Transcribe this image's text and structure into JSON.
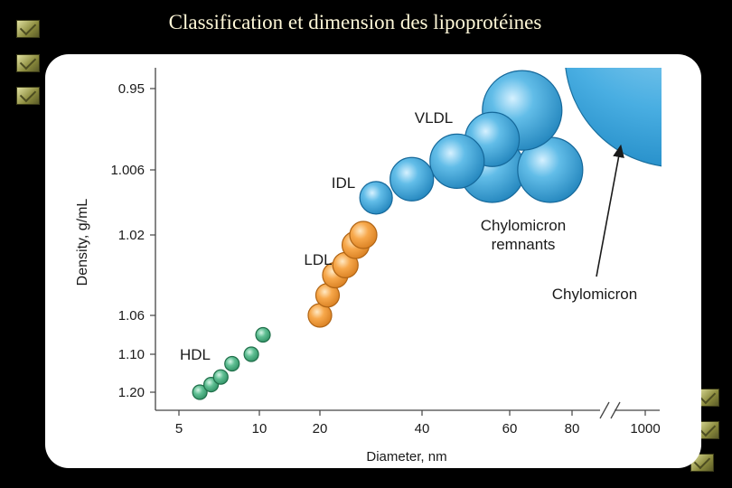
{
  "slide": {
    "title": "Classification et dimension des lipoprotéines",
    "bullets": [
      "checkbox-bullet",
      "checkbox-bullet",
      "checkbox-bullet",
      "checkbox-bullet",
      "checkbox-bullet",
      "checkbox-bullet"
    ]
  },
  "chart_data": {
    "type": "scatter",
    "title": "",
    "xlabel": "Diameter, nm",
    "ylabel": "Density, g/mL",
    "x_ticks": [
      "5",
      "10",
      "20",
      "40",
      "60",
      "80",
      "1000"
    ],
    "y_ticks": [
      "0.95",
      "1.006",
      "1.02",
      "1.06",
      "1.10",
      "1.20"
    ],
    "x_axis_break": "between 80 and 1000",
    "colors": {
      "HDL": "#3fa67a",
      "LDL": "#f0962e",
      "VLDL": "#3a9fd6",
      "Chylomicron": "#3a9fd6"
    },
    "series": [
      {
        "name": "HDL",
        "label": "HDL",
        "color": "#3fa67a",
        "points": [
          {
            "x": 6.3,
            "y": 1.2
          },
          {
            "x": 7.0,
            "y": 1.18
          },
          {
            "x": 7.6,
            "y": 1.16
          },
          {
            "x": 8.3,
            "y": 1.125
          },
          {
            "x": 9.5,
            "y": 1.1
          },
          {
            "x": 10.6,
            "y": 1.08
          }
        ]
      },
      {
        "name": "LDL",
        "label": "LDL",
        "color": "#f0962e",
        "points": [
          {
            "x": 20,
            "y": 1.06
          },
          {
            "x": 21.5,
            "y": 1.05
          },
          {
            "x": 23,
            "y": 1.04
          },
          {
            "x": 25,
            "y": 1.035
          },
          {
            "x": 27,
            "y": 1.025
          },
          {
            "x": 28.5,
            "y": 1.02
          }
        ]
      },
      {
        "name": "IDL",
        "label": "IDL",
        "color": "#3a9fd6",
        "points": [
          {
            "x": 31,
            "y": 1.012
          },
          {
            "x": 38,
            "y": 1.008
          }
        ]
      },
      {
        "name": "VLDL",
        "label": "VLDL",
        "color": "#3a9fd6",
        "points": [
          {
            "x": 48,
            "y": 1.0
          },
          {
            "x": 56,
            "y": 0.985
          },
          {
            "x": 64,
            "y": 0.965
          }
        ]
      },
      {
        "name": "Chylomicron remnants",
        "label": "Chylomicron\nremnants",
        "color": "#3a9fd6",
        "points": [
          {
            "x": 56,
            "y": 1.006
          },
          {
            "x": 73,
            "y": 1.006
          }
        ]
      },
      {
        "name": "Chylomicron",
        "label": "Chylomicron",
        "color": "#3a9fd6",
        "points": [
          {
            "x": 1000,
            "y": 0.95
          }
        ]
      }
    ]
  }
}
